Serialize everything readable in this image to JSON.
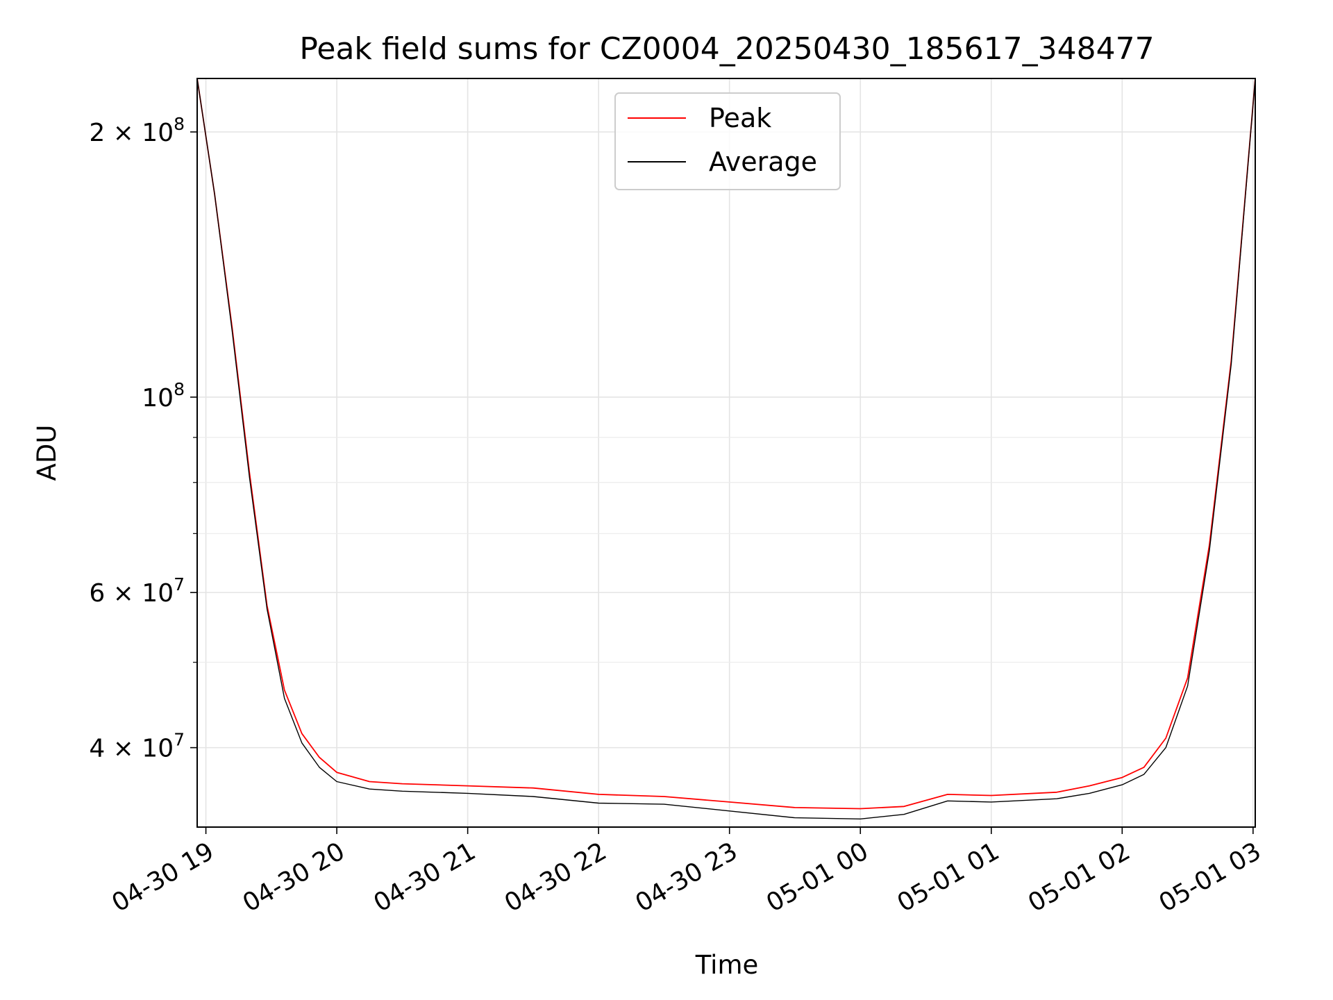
{
  "chart_data": {
    "type": "line",
    "title": "Peak field sums for CZ0004_20250430_185617_348477",
    "xlabel": "Time",
    "ylabel": "ADU",
    "yscale": "log",
    "xlim": [
      "2025-04-30 18:56",
      "2025-05-01 03:01"
    ],
    "ylim": [
      32500000,
      230000000
    ],
    "grid": true,
    "legend": "upper center",
    "x_ticks": [
      {
        "t": "2025-04-30 19:00",
        "label": "04-30 19"
      },
      {
        "t": "2025-04-30 20:00",
        "label": "04-30 20"
      },
      {
        "t": "2025-04-30 21:00",
        "label": "04-30 21"
      },
      {
        "t": "2025-04-30 22:00",
        "label": "04-30 22"
      },
      {
        "t": "2025-04-30 23:00",
        "label": "04-30 23"
      },
      {
        "t": "2025-05-01 00:00",
        "label": "05-01 00"
      },
      {
        "t": "2025-05-01 01:00",
        "label": "05-01 01"
      },
      {
        "t": "2025-05-01 02:00",
        "label": "05-01 02"
      },
      {
        "t": "2025-05-01 03:00",
        "label": "05-01 03"
      }
    ],
    "y_ticks": [
      {
        "value": 40000000,
        "mantissa": "4",
        "exp": "7"
      },
      {
        "value": 60000000,
        "mantissa": "6",
        "exp": "7"
      },
      {
        "value": 100000000,
        "mantissa": "",
        "exp": "8"
      },
      {
        "value": 200000000,
        "mantissa": "2",
        "exp": "8"
      }
    ],
    "y_minor_ticks": [
      50000000,
      70000000,
      80000000,
      90000000
    ],
    "series": [
      {
        "name": "Peak",
        "color": "#ff0000",
        "points": [
          [
            "2025-04-30 18:56",
            230000000
          ],
          [
            "2025-04-30 19:04",
            170000000
          ],
          [
            "2025-04-30 19:12",
            120000000
          ],
          [
            "2025-04-30 19:20",
            82000000
          ],
          [
            "2025-04-30 19:28",
            58000000
          ],
          [
            "2025-04-30 19:36",
            46500000
          ],
          [
            "2025-04-30 19:44",
            41500000
          ],
          [
            "2025-04-30 19:52",
            39000000
          ],
          [
            "2025-04-30 20:00",
            37500000
          ],
          [
            "2025-04-30 20:15",
            36600000
          ],
          [
            "2025-04-30 20:30",
            36400000
          ],
          [
            "2025-04-30 21:00",
            36200000
          ],
          [
            "2025-04-30 21:30",
            36000000
          ],
          [
            "2025-04-30 22:00",
            35400000
          ],
          [
            "2025-04-30 22:30",
            35200000
          ],
          [
            "2025-04-30 23:00",
            34700000
          ],
          [
            "2025-04-30 23:30",
            34200000
          ],
          [
            "2025-05-01 00:00",
            34100000
          ],
          [
            "2025-05-01 00:20",
            34300000
          ],
          [
            "2025-05-01 00:40",
            35400000
          ],
          [
            "2025-05-01 01:00",
            35300000
          ],
          [
            "2025-05-01 01:30",
            35600000
          ],
          [
            "2025-05-01 01:45",
            36200000
          ],
          [
            "2025-05-01 02:00",
            37000000
          ],
          [
            "2025-05-01 02:10",
            38000000
          ],
          [
            "2025-05-01 02:20",
            41000000
          ],
          [
            "2025-05-01 02:30",
            48000000
          ],
          [
            "2025-05-01 02:40",
            68000000
          ],
          [
            "2025-05-01 02:50",
            110000000
          ],
          [
            "2025-05-01 03:01",
            230000000
          ]
        ]
      },
      {
        "name": "Average",
        "color": "#000000",
        "points": [
          [
            "2025-04-30 18:56",
            230000000
          ],
          [
            "2025-04-30 19:04",
            170000000
          ],
          [
            "2025-04-30 19:12",
            119000000
          ],
          [
            "2025-04-30 19:20",
            81000000
          ],
          [
            "2025-04-30 19:28",
            57500000
          ],
          [
            "2025-04-30 19:36",
            45500000
          ],
          [
            "2025-04-30 19:44",
            40500000
          ],
          [
            "2025-04-30 19:52",
            38000000
          ],
          [
            "2025-04-30 20:00",
            36600000
          ],
          [
            "2025-04-30 20:15",
            35900000
          ],
          [
            "2025-04-30 20:30",
            35700000
          ],
          [
            "2025-04-30 21:00",
            35500000
          ],
          [
            "2025-04-30 21:30",
            35200000
          ],
          [
            "2025-04-30 22:00",
            34600000
          ],
          [
            "2025-04-30 22:30",
            34500000
          ],
          [
            "2025-04-30 23:00",
            33900000
          ],
          [
            "2025-04-30 23:30",
            33300000
          ],
          [
            "2025-05-01 00:00",
            33200000
          ],
          [
            "2025-05-01 00:20",
            33600000
          ],
          [
            "2025-05-01 00:40",
            34800000
          ],
          [
            "2025-05-01 01:00",
            34700000
          ],
          [
            "2025-05-01 01:30",
            35000000
          ],
          [
            "2025-05-01 01:45",
            35500000
          ],
          [
            "2025-05-01 02:00",
            36300000
          ],
          [
            "2025-05-01 02:10",
            37300000
          ],
          [
            "2025-05-01 02:20",
            40000000
          ],
          [
            "2025-05-01 02:30",
            47000000
          ],
          [
            "2025-05-01 02:40",
            67000000
          ],
          [
            "2025-05-01 02:50",
            109000000
          ],
          [
            "2025-05-01 03:01",
            230000000
          ]
        ]
      }
    ]
  }
}
